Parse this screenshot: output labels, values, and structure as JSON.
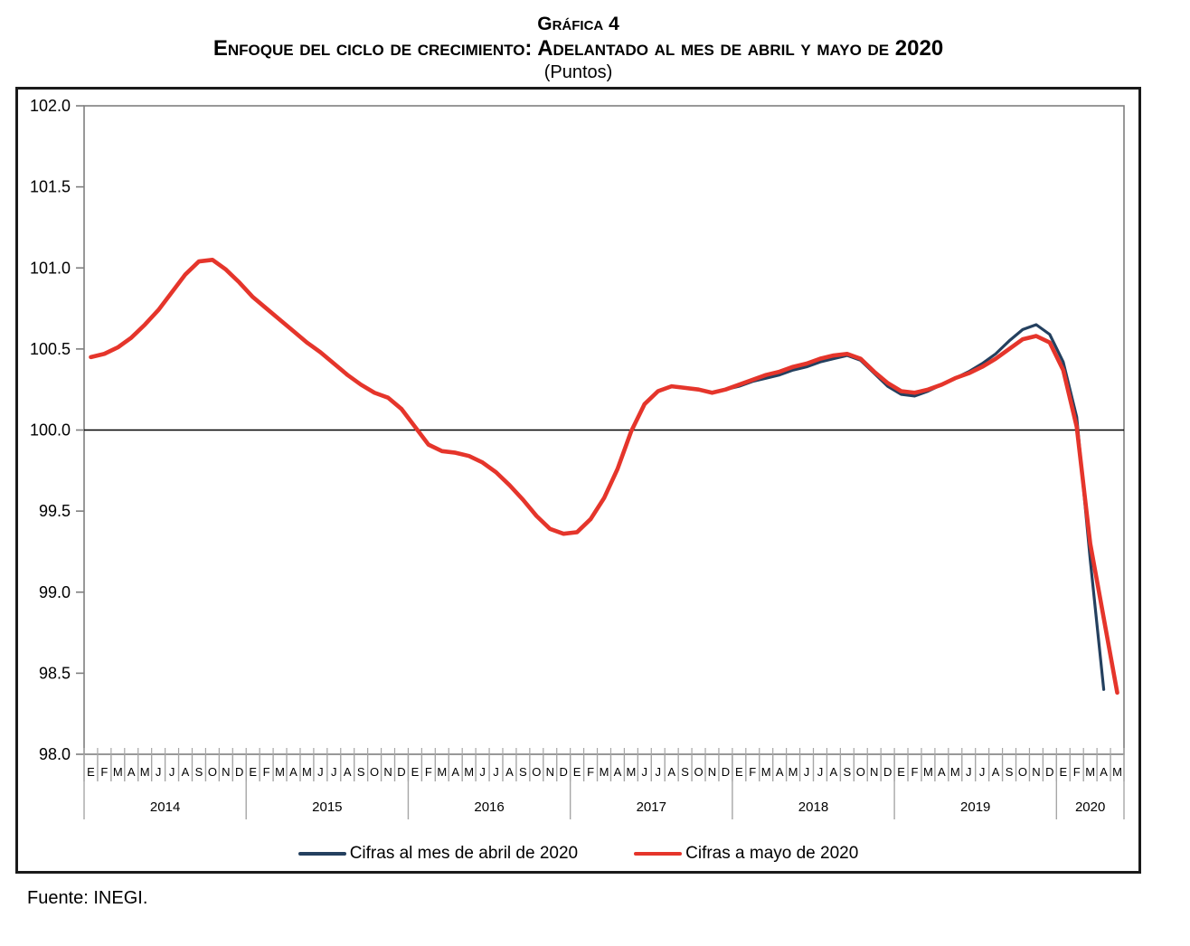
{
  "header": {
    "line1": "Gráfica 4",
    "line2": "Enfoque del ciclo de crecimiento: Adelantado al mes de abril y mayo de 2020",
    "line3": "(Puntos)"
  },
  "footer": {
    "source": "Fuente: INEGI."
  },
  "chart_data": {
    "type": "line",
    "title": "Gráfica 4",
    "subtitle": "Enfoque del ciclo de crecimiento: Adelantado al mes de abril y mayo de 2020",
    "units_label": "(Puntos)",
    "xlabel": "",
    "ylabel": "",
    "ylim": [
      98.0,
      102.0
    ],
    "ytick_step": 0.5,
    "ytick_labels": [
      "102.0",
      "101.5",
      "101.0",
      "100.5",
      "100.0",
      "99.5",
      "99.0",
      "98.5",
      "98.0"
    ],
    "reference_line": 100.0,
    "grid": false,
    "legend_position": "bottom",
    "axis_color": "#7f7f7f",
    "separator_color": "#a6a6a6",
    "reference_line_color": "#000000",
    "x_axis": {
      "years": [
        {
          "label": "2014",
          "months": [
            "E",
            "F",
            "M",
            "A",
            "M",
            "J",
            "J",
            "A",
            "S",
            "O",
            "N",
            "D"
          ]
        },
        {
          "label": "2015",
          "months": [
            "E",
            "F",
            "M",
            "A",
            "M",
            "J",
            "J",
            "A",
            "S",
            "O",
            "N",
            "D"
          ]
        },
        {
          "label": "2016",
          "months": [
            "E",
            "F",
            "M",
            "A",
            "M",
            "J",
            "J",
            "A",
            "S",
            "O",
            "N",
            "D"
          ]
        },
        {
          "label": "2017",
          "months": [
            "E",
            "F",
            "M",
            "A",
            "M",
            "J",
            "J",
            "A",
            "S",
            "O",
            "N",
            "D"
          ]
        },
        {
          "label": "2018",
          "months": [
            "E",
            "F",
            "M",
            "A",
            "M",
            "J",
            "J",
            "A",
            "S",
            "O",
            "N",
            "D"
          ]
        },
        {
          "label": "2019",
          "months": [
            "E",
            "F",
            "M",
            "A",
            "M",
            "J",
            "J",
            "A",
            "S",
            "O",
            "N",
            "D"
          ]
        },
        {
          "label": "2020",
          "months": [
            "E",
            "F",
            "M",
            "A",
            "M"
          ]
        }
      ]
    },
    "series": [
      {
        "name": "Cifras al mes de abril de 2020",
        "color": "#24405f",
        "line_width": 3.2,
        "values": [
          100.45,
          100.47,
          100.51,
          100.57,
          100.65,
          100.74,
          100.85,
          100.96,
          101.04,
          101.05,
          100.99,
          100.91,
          100.82,
          100.75,
          100.68,
          100.61,
          100.54,
          100.48,
          100.41,
          100.34,
          100.28,
          100.23,
          100.2,
          100.13,
          100.02,
          99.91,
          99.87,
          99.86,
          99.84,
          99.8,
          99.74,
          99.66,
          99.57,
          99.47,
          99.39,
          99.36,
          99.37,
          99.45,
          99.58,
          99.76,
          99.99,
          100.16,
          100.24,
          100.27,
          100.26,
          100.25,
          100.23,
          100.25,
          100.27,
          100.3,
          100.32,
          100.34,
          100.37,
          100.39,
          100.42,
          100.44,
          100.46,
          100.43,
          100.35,
          100.27,
          100.22,
          100.21,
          100.24,
          100.28,
          100.32,
          100.36,
          100.41,
          100.47,
          100.55,
          100.62,
          100.65,
          100.59,
          100.42,
          100.08,
          99.2,
          98.4
        ]
      },
      {
        "name": "Cifras a mayo de 2020",
        "color": "#e5352b",
        "line_width": 4.6,
        "values": [
          100.45,
          100.47,
          100.51,
          100.57,
          100.65,
          100.74,
          100.85,
          100.96,
          101.04,
          101.05,
          100.99,
          100.91,
          100.82,
          100.75,
          100.68,
          100.61,
          100.54,
          100.48,
          100.41,
          100.34,
          100.28,
          100.23,
          100.2,
          100.13,
          100.02,
          99.91,
          99.87,
          99.86,
          99.84,
          99.8,
          99.74,
          99.66,
          99.57,
          99.47,
          99.39,
          99.36,
          99.37,
          99.45,
          99.58,
          99.76,
          99.99,
          100.16,
          100.24,
          100.27,
          100.26,
          100.25,
          100.23,
          100.25,
          100.28,
          100.31,
          100.34,
          100.36,
          100.39,
          100.41,
          100.44,
          100.46,
          100.47,
          100.44,
          100.36,
          100.29,
          100.24,
          100.23,
          100.25,
          100.28,
          100.32,
          100.35,
          100.39,
          100.44,
          100.5,
          100.56,
          100.58,
          100.54,
          100.37,
          100.02,
          99.3,
          98.84,
          98.38
        ]
      }
    ]
  }
}
